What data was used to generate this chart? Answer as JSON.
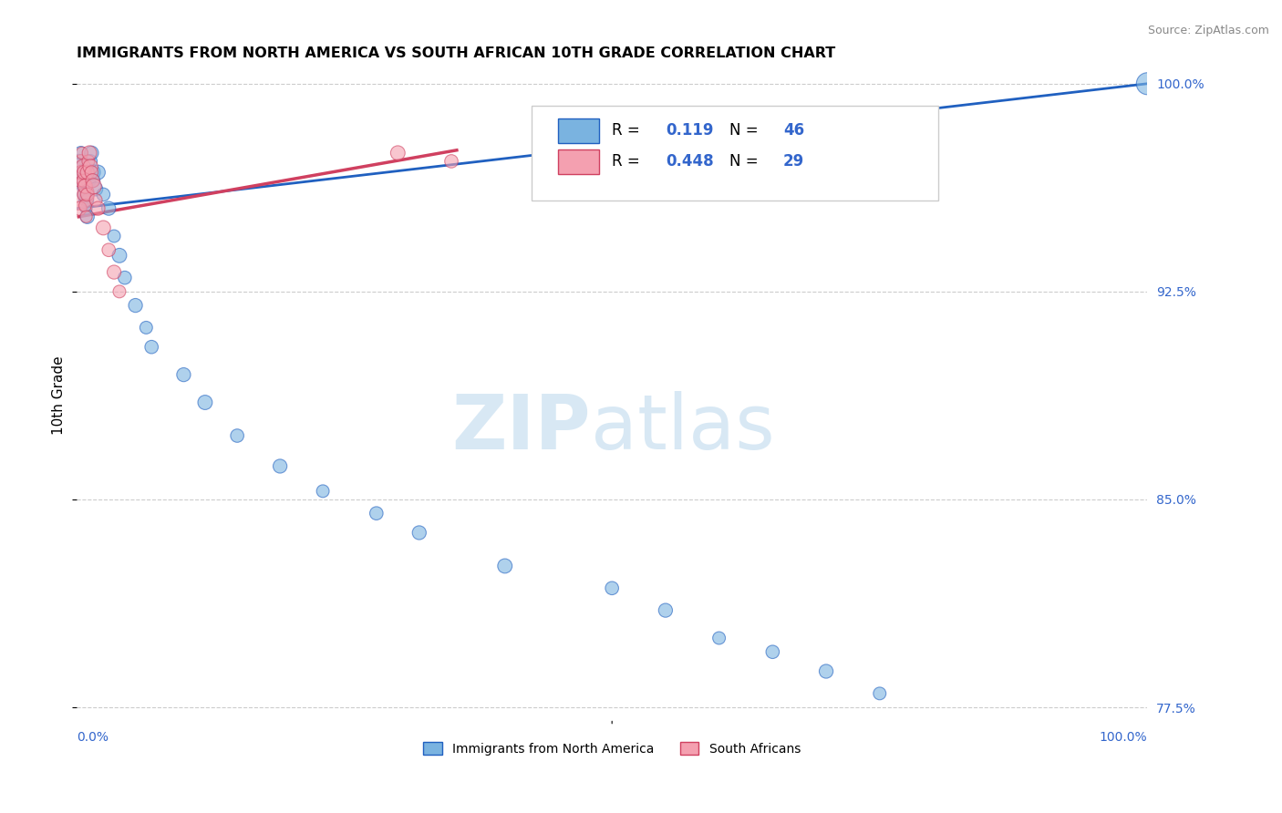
{
  "title": "IMMIGRANTS FROM NORTH AMERICA VS SOUTH AFRICAN 10TH GRADE CORRELATION CHART",
  "source": "Source: ZipAtlas.com",
  "ylabel": "10th Grade",
  "ylabel_right_values": [
    1.0,
    0.925,
    0.85,
    0.775
  ],
  "r_blue": 0.119,
  "n_blue": 46,
  "r_pink": 0.448,
  "n_pink": 29,
  "blue_color": "#7ab3e0",
  "pink_color": "#f4a0b0",
  "blue_line_color": "#2060c0",
  "pink_line_color": "#d04060",
  "blue_scatter_x": [
    0.002,
    0.003,
    0.004,
    0.005,
    0.005,
    0.006,
    0.006,
    0.007,
    0.007,
    0.008,
    0.008,
    0.009,
    0.009,
    0.01,
    0.01,
    0.011,
    0.012,
    0.013,
    0.014,
    0.015,
    0.016,
    0.018,
    0.02,
    0.025,
    0.03,
    0.035,
    0.04,
    0.045,
    0.055,
    0.065,
    0.07,
    0.1,
    0.12,
    0.15,
    0.19,
    0.23,
    0.28,
    0.32,
    0.4,
    0.5,
    0.55,
    0.6,
    0.65,
    0.7,
    0.75,
    1.0
  ],
  "blue_scatter_y": [
    0.972,
    0.968,
    0.975,
    0.965,
    0.97,
    0.963,
    0.968,
    0.96,
    0.965,
    0.958,
    0.963,
    0.955,
    0.96,
    0.952,
    0.958,
    0.965,
    0.968,
    0.972,
    0.975,
    0.968,
    0.965,
    0.962,
    0.968,
    0.96,
    0.955,
    0.945,
    0.938,
    0.93,
    0.92,
    0.912,
    0.905,
    0.895,
    0.885,
    0.873,
    0.862,
    0.853,
    0.845,
    0.838,
    0.826,
    0.818,
    0.81,
    0.8,
    0.795,
    0.788,
    0.78,
    1.0
  ],
  "blue_scatter_sizes": [
    120,
    100,
    110,
    130,
    90,
    100,
    140,
    110,
    120,
    100,
    130,
    90,
    110,
    120,
    100,
    130,
    140,
    110,
    120,
    150,
    100,
    120,
    130,
    110,
    120,
    100,
    130,
    110,
    120,
    100,
    110,
    120,
    130,
    110,
    120,
    100,
    110,
    120,
    130,
    110,
    120,
    100,
    110,
    120,
    100,
    300
  ],
  "pink_scatter_x": [
    0.002,
    0.003,
    0.003,
    0.004,
    0.005,
    0.005,
    0.006,
    0.006,
    0.007,
    0.007,
    0.008,
    0.008,
    0.009,
    0.01,
    0.01,
    0.011,
    0.012,
    0.013,
    0.014,
    0.015,
    0.016,
    0.018,
    0.02,
    0.025,
    0.03,
    0.035,
    0.04,
    0.3,
    0.35
  ],
  "pink_scatter_y": [
    0.96,
    0.955,
    0.965,
    0.972,
    0.968,
    0.975,
    0.965,
    0.97,
    0.96,
    0.968,
    0.956,
    0.963,
    0.952,
    0.96,
    0.968,
    0.972,
    0.975,
    0.97,
    0.968,
    0.965,
    0.963,
    0.958,
    0.955,
    0.948,
    0.94,
    0.932,
    0.925,
    0.975,
    0.972
  ],
  "pink_scatter_sizes": [
    600,
    120,
    100,
    110,
    130,
    90,
    100,
    140,
    110,
    120,
    100,
    130,
    90,
    110,
    120,
    100,
    130,
    140,
    110,
    120,
    150,
    100,
    120,
    130,
    110,
    120,
    100,
    130,
    110
  ],
  "blue_trend_x": [
    0.0,
    1.0
  ],
  "blue_trend_y": [
    0.955,
    1.0
  ],
  "pink_trend_x": [
    0.002,
    0.355
  ],
  "pink_trend_y": [
    0.952,
    0.976
  ],
  "xlim": [
    0.0,
    1.0
  ],
  "ylim": [
    0.77,
    1.005
  ]
}
